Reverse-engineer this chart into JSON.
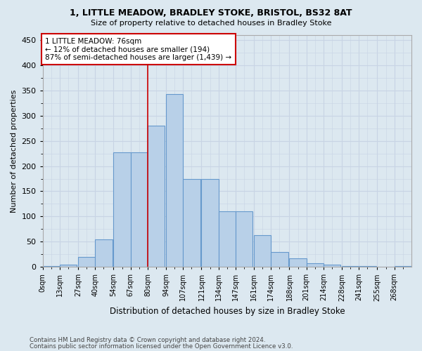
{
  "title1": "1, LITTLE MEADOW, BRADLEY STOKE, BRISTOL, BS32 8AT",
  "title2": "Size of property relative to detached houses in Bradley Stoke",
  "xlabel": "Distribution of detached houses by size in Bradley Stoke",
  "ylabel": "Number of detached properties",
  "bin_labels": [
    "0sqm",
    "13sqm",
    "27sqm",
    "40sqm",
    "54sqm",
    "67sqm",
    "80sqm",
    "94sqm",
    "107sqm",
    "121sqm",
    "134sqm",
    "147sqm",
    "161sqm",
    "174sqm",
    "188sqm",
    "201sqm",
    "214sqm",
    "228sqm",
    "241sqm",
    "255sqm",
    "268sqm"
  ],
  "bar_values": [
    2,
    5,
    20,
    55,
    228,
    228,
    280,
    343,
    175,
    175,
    110,
    110,
    63,
    30,
    17,
    7,
    5,
    2,
    1,
    0,
    1
  ],
  "bar_color": "#b8d0e8",
  "bar_edge_color": "#6699cc",
  "grid_color": "#c8d4e4",
  "bg_color": "#dce8f0",
  "vline_x": 80,
  "annotation_text": "1 LITTLE MEADOW: 76sqm\n← 12% of detached houses are smaller (194)\n87% of semi-detached houses are larger (1,439) →",
  "annotation_box_color": "#ffffff",
  "annotation_box_edge": "#cc0000",
  "footer1": "Contains HM Land Registry data © Crown copyright and database right 2024.",
  "footer2": "Contains public sector information licensed under the Open Government Licence v3.0.",
  "ylim": [
    0,
    460
  ],
  "bin_width": 13,
  "bin_starts": [
    0,
    13,
    27,
    40,
    54,
    67,
    80,
    94,
    107,
    121,
    134,
    147,
    161,
    174,
    188,
    201,
    214,
    228,
    241,
    255,
    268
  ],
  "yticks": [
    0,
    50,
    100,
    150,
    200,
    250,
    300,
    350,
    400,
    450
  ]
}
